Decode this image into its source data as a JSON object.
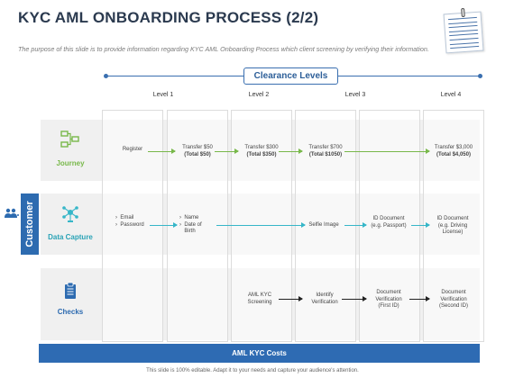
{
  "title": "KYC AML ONBOARDING PROCESS (2/2)",
  "subtitle": "The purpose of this slide is to provide information regarding KYC AML Onboarding Process which client screening by verifying their information.",
  "clearance_title": "Clearance Levels",
  "levels": [
    "Level 1",
    "Level 2",
    "Level 3",
    "Level 4"
  ],
  "side_label": "Customer",
  "rows": {
    "journey": {
      "label": "Journey",
      "register": "Register",
      "t1": [
        "Transfer $50",
        "(Total $50)"
      ],
      "t2": [
        "Transfer $300",
        "(Total $350)"
      ],
      "t3": [
        "Transfer $700",
        "(Total $1050)"
      ],
      "t4": [
        "Transfer $3,000",
        "(Total $4,050)"
      ]
    },
    "data_capture": {
      "label": "Data Capture",
      "l1": [
        "Email",
        "Password"
      ],
      "l2": [
        "Name",
        "Date of Birth"
      ],
      "selfie": "Selfie Image",
      "id_doc": [
        "ID Document",
        "(e.g. Passport)"
      ],
      "id_doc2": [
        "ID Document",
        "(e.g. Driving",
        "License)"
      ]
    },
    "checks": {
      "label": "Checks",
      "aml": [
        "AML KYC",
        "Screening"
      ],
      "identify": [
        "Identify",
        "Verification"
      ],
      "doc1": [
        "Document",
        "Verification",
        "(First ID)"
      ],
      "doc2": [
        "Document",
        "Verification",
        "(Second ID)"
      ]
    }
  },
  "bottom_label": "AML KYC Costs",
  "footer": "This slide is 100% editable. Adapt it to your needs and capture your audience's attention.",
  "colors": {
    "blue": "#2d6bb0",
    "green": "#78b84a",
    "cyan": "#36b6c8",
    "title": "#2b3a4f"
  },
  "icons": [
    "flow-icon",
    "network-icon",
    "clipboard-icon",
    "users-icon",
    "notepad-icon"
  ]
}
